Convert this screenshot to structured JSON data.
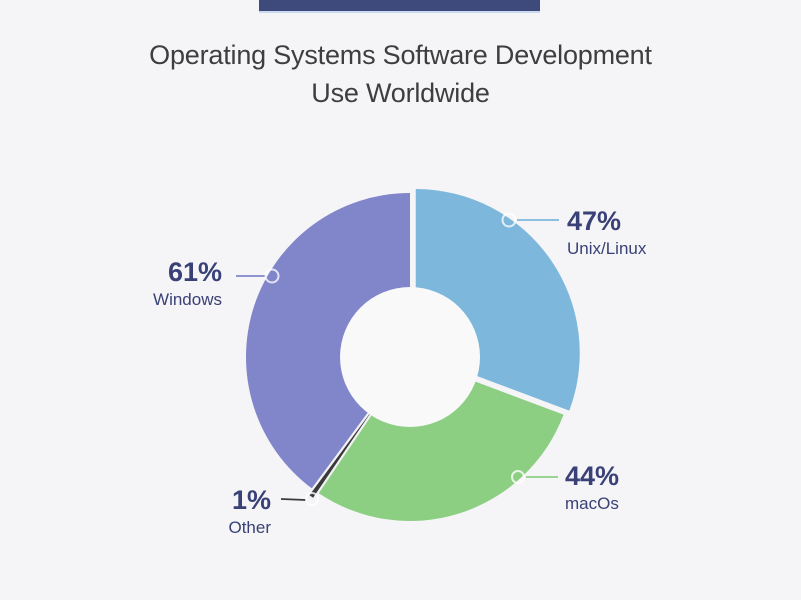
{
  "page": {
    "background_color": "#f5f4f6",
    "accent_bar_color": "#3e4a7b",
    "accent_bar_underline_color": "#ccd8ee"
  },
  "header": {
    "title_line1": "Operating Systems Software Development",
    "title_line2": "Use Worldwide"
  },
  "chart_data": {
    "type": "pie",
    "subtype": "donut",
    "title": "Operating Systems Software Development Use Worldwide",
    "legend_position": "callout-labels",
    "grid": false,
    "hole_color": "#f9f9fa",
    "text_color": "#394177",
    "categories": [
      "Unix/Linux",
      "macOs",
      "Other",
      "Windows"
    ],
    "values": [
      47,
      44,
      1,
      61
    ],
    "series": [
      {
        "label": "Unix/Linux",
        "value": 47,
        "pct": "47%",
        "color": "#7db8dc"
      },
      {
        "label": "macOs",
        "value": 44,
        "pct": "44%",
        "color": "#8ccf83"
      },
      {
        "label": "Other",
        "value": 1,
        "pct": "1%",
        "color": "#3a3a3c"
      },
      {
        "label": "Windows",
        "value": 61,
        "pct": "61%",
        "color": "#8186cb"
      }
    ]
  }
}
